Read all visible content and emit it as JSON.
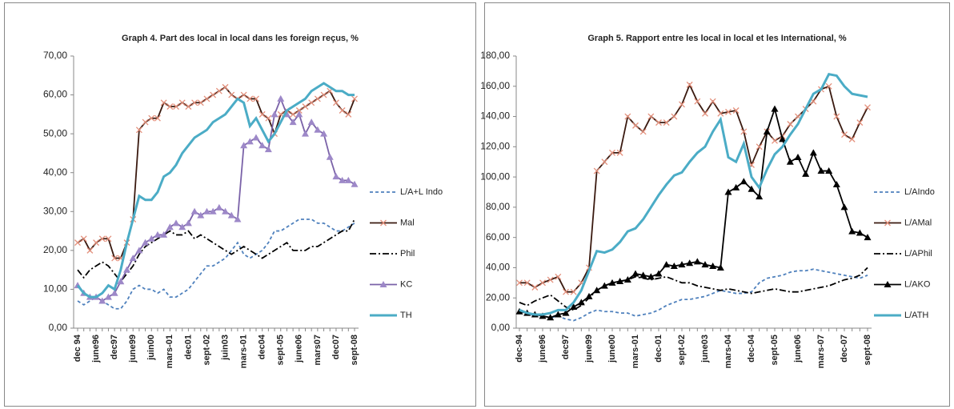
{
  "chart_data": [
    {
      "type": "line",
      "title": "Graph 4. Part des local in local dans les foreign reçus, %",
      "categories": [
        "dec 94",
        null,
        null,
        "june96",
        null,
        null,
        "dec97",
        null,
        null,
        "june99",
        null,
        null,
        "juin00",
        null,
        null,
        "mars-01",
        null,
        null,
        "dec01",
        null,
        null,
        "sept-02",
        null,
        null,
        "juin03",
        null,
        null,
        "mars-01",
        null,
        null,
        "dec04",
        null,
        null,
        "sept-05",
        null,
        null,
        "june06",
        null,
        null,
        "mars07",
        null,
        null,
        "dec07",
        null,
        null,
        "sept-08"
      ],
      "ylim": [
        0,
        70
      ],
      "yticks": [
        {
          "value": 0,
          "label": "0,00"
        },
        {
          "value": 10,
          "label": "10,00"
        },
        {
          "value": 20,
          "label": "20,00"
        },
        {
          "value": 30,
          "label": "30,00"
        },
        {
          "value": 40,
          "label": "40,00"
        },
        {
          "value": 50,
          "label": "50,00"
        },
        {
          "value": 60,
          "label": "60,00"
        },
        {
          "value": 70,
          "label": "70,00"
        }
      ],
      "legend": "right",
      "series": [
        {
          "name": "L/A+L Indo",
          "color": "#4f81bd",
          "dash": "dash",
          "values": [
            7,
            6,
            7,
            8,
            7,
            6,
            5,
            5,
            7,
            10,
            11,
            10,
            10,
            9,
            10,
            8,
            8,
            9,
            10,
            12,
            14,
            16,
            16,
            17,
            18,
            20,
            22,
            19,
            18,
            19,
            20,
            22,
            25,
            25,
            26,
            27,
            28,
            28,
            28,
            27,
            27,
            26,
            25,
            25,
            26,
            27
          ]
        },
        {
          "name": "Mal",
          "color": "#3a1a10",
          "marker": "x",
          "marker_color": "#e4907c",
          "values": [
            22,
            23,
            20,
            22,
            23,
            23,
            18,
            18,
            22,
            28,
            51,
            53,
            54,
            54,
            58,
            57,
            57,
            58,
            57,
            58,
            58,
            59,
            60,
            61,
            62,
            60,
            59,
            60,
            59,
            59,
            55,
            54,
            50,
            55,
            56,
            55,
            56,
            57,
            58,
            59,
            60,
            61,
            58,
            56,
            55,
            59
          ]
        },
        {
          "name": "Phil",
          "color": "#000000",
          "dash": "dashdot",
          "values": [
            15,
            13,
            15,
            16,
            17,
            16,
            14,
            12,
            14,
            16,
            19,
            21,
            22,
            23,
            24,
            25,
            24,
            24,
            25,
            23,
            24,
            23,
            22,
            21,
            20,
            19,
            20,
            21,
            20,
            19,
            18,
            19,
            20,
            21,
            22,
            20,
            20,
            20,
            21,
            21,
            22,
            23,
            24,
            25,
            25,
            28
          ]
        },
        {
          "name": "KC",
          "color": "#7a62a8",
          "marker": "triangle",
          "marker_color": "#9d88c8",
          "values": [
            11,
            9,
            8,
            8,
            7,
            8,
            9,
            12,
            15,
            18,
            20,
            22,
            23,
            24,
            24,
            26,
            27,
            26,
            27,
            30,
            29,
            30,
            30,
            31,
            30,
            29,
            28,
            47,
            48,
            49,
            47,
            46,
            55,
            59,
            55,
            53,
            55,
            50,
            53,
            51,
            50,
            44,
            39,
            38,
            38,
            37
          ]
        },
        {
          "name": "TH",
          "color": "#4bacc6",
          "width": 3,
          "values": [
            11,
            9,
            8,
            8,
            9,
            11,
            10,
            15,
            22,
            28,
            34,
            33,
            33,
            35,
            39,
            40,
            42,
            45,
            47,
            49,
            50,
            51,
            53,
            54,
            55,
            57,
            59,
            58,
            52,
            54,
            51,
            48,
            50,
            53,
            56,
            57,
            58,
            59,
            61,
            62,
            63,
            62,
            61,
            61,
            60,
            60
          ]
        }
      ]
    },
    {
      "type": "line",
      "title": "Graph 5. Rapport entre les local in local et les International, %",
      "categories": [
        "dec-94",
        null,
        null,
        "june96",
        null,
        null,
        "dec97",
        null,
        null,
        "june99",
        null,
        null,
        "june00",
        null,
        null,
        "mars-01",
        null,
        null,
        "dec-01",
        null,
        null,
        "sept-02",
        null,
        null,
        "june03",
        null,
        null,
        "mars-04",
        null,
        null,
        "dec-04",
        null,
        null,
        "sept-05",
        null,
        null,
        "june06",
        null,
        null,
        "mars-07",
        null,
        null,
        "dec-07",
        null,
        null,
        "sept-08"
      ],
      "ylim": [
        0,
        180
      ],
      "yticks": [
        {
          "value": 0,
          "label": "0,00"
        },
        {
          "value": 20,
          "label": "20,00"
        },
        {
          "value": 40,
          "label": "40,00"
        },
        {
          "value": 60,
          "label": "60,00"
        },
        {
          "value": 80,
          "label": "80,00"
        },
        {
          "value": 100,
          "label": "100,00"
        },
        {
          "value": 120,
          "label": "120,00"
        },
        {
          "value": 140,
          "label": "140,00"
        },
        {
          "value": 160,
          "label": "160,00"
        },
        {
          "value": 180,
          "label": "180,00"
        }
      ],
      "legend": "right",
      "series": [
        {
          "name": "L/AIndo",
          "color": "#4f81bd",
          "dash": "dash",
          "values": [
            12,
            10,
            8,
            8,
            7,
            8,
            6,
            5,
            7,
            10,
            12,
            11,
            11,
            10,
            10,
            8,
            9,
            10,
            12,
            15,
            17,
            19,
            19,
            20,
            21,
            23,
            25,
            24,
            23,
            23,
            24,
            30,
            33,
            34,
            35,
            37,
            38,
            38,
            39,
            38,
            37,
            36,
            35,
            34,
            33,
            35
          ]
        },
        {
          "name": "L/AMal",
          "color": "#3a1a10",
          "marker": "x",
          "marker_color": "#e4907c",
          "values": [
            30,
            30,
            27,
            30,
            32,
            34,
            24,
            24,
            30,
            40,
            104,
            110,
            116,
            116,
            140,
            134,
            130,
            140,
            136,
            136,
            140,
            148,
            161,
            150,
            142,
            150,
            142,
            143,
            144,
            130,
            108,
            120,
            130,
            124,
            127,
            135,
            140,
            145,
            150,
            158,
            160,
            140,
            128,
            125,
            136,
            146
          ]
        },
        {
          "name": "L/APhil",
          "color": "#000000",
          "dash": "dashdot",
          "values": [
            17,
            15,
            18,
            20,
            22,
            18,
            14,
            12,
            15,
            20,
            25,
            28,
            30,
            31,
            32,
            34,
            33,
            32,
            33,
            34,
            32,
            30,
            30,
            28,
            27,
            26,
            25,
            26,
            25,
            24,
            23,
            24,
            25,
            26,
            25,
            24,
            24,
            25,
            26,
            27,
            28,
            30,
            32,
            33,
            35,
            40
          ]
        },
        {
          "name": "L/AKO",
          "color": "#000000",
          "marker": "triangle",
          "marker_color": "#000000",
          "values": [
            11,
            10,
            9,
            8,
            7,
            9,
            10,
            14,
            17,
            21,
            25,
            28,
            30,
            31,
            32,
            36,
            35,
            34,
            36,
            42,
            41,
            42,
            43,
            44,
            42,
            41,
            40,
            90,
            93,
            97,
            92,
            87,
            130,
            145,
            125,
            110,
            113,
            102,
            116,
            104,
            104,
            95,
            80,
            64,
            63,
            60
          ]
        },
        {
          "name": "L/ATH",
          "color": "#4bacc6",
          "width": 3,
          "values": [
            12,
            10,
            9,
            9,
            10,
            12,
            12,
            17,
            25,
            38,
            51,
            50,
            52,
            57,
            64,
            66,
            72,
            80,
            88,
            95,
            101,
            103,
            110,
            116,
            120,
            130,
            138,
            113,
            110,
            122,
            100,
            93,
            105,
            115,
            120,
            128,
            135,
            145,
            155,
            158,
            168,
            167,
            160,
            155,
            154,
            153
          ]
        }
      ]
    }
  ]
}
